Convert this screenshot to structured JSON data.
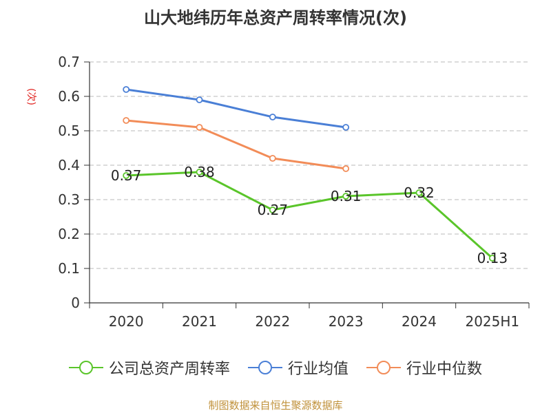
{
  "chart_data": {
    "type": "line",
    "title": "山大地纬历年总资产周转率情况(次)",
    "ylabel": "(次)",
    "categories": [
      "2020",
      "2021",
      "2022",
      "2023",
      "2024",
      "2025H1"
    ],
    "ylim": [
      0,
      0.7
    ],
    "yticks": [
      "0",
      "0.1",
      "0.2",
      "0.3",
      "0.4",
      "0.5",
      "0.6",
      "0.7"
    ],
    "grid": true,
    "legend_position": "bottom",
    "series": [
      {
        "name": "公司总资产周转率",
        "color": "#5ac52a",
        "values": [
          0.37,
          0.38,
          0.27,
          0.31,
          0.32,
          0.13
        ],
        "labels": [
          "0.37",
          "0.38",
          "0.27",
          "0.31",
          "0.32",
          "0.13"
        ]
      },
      {
        "name": "行业均值",
        "color": "#4a7fd6",
        "values": [
          0.62,
          0.59,
          0.54,
          0.51,
          null,
          null
        ]
      },
      {
        "name": "行业中位数",
        "color": "#f28c58",
        "values": [
          0.53,
          0.51,
          0.42,
          0.39,
          null,
          null
        ]
      }
    ]
  },
  "source": "制图数据来自恒生聚源数据库"
}
